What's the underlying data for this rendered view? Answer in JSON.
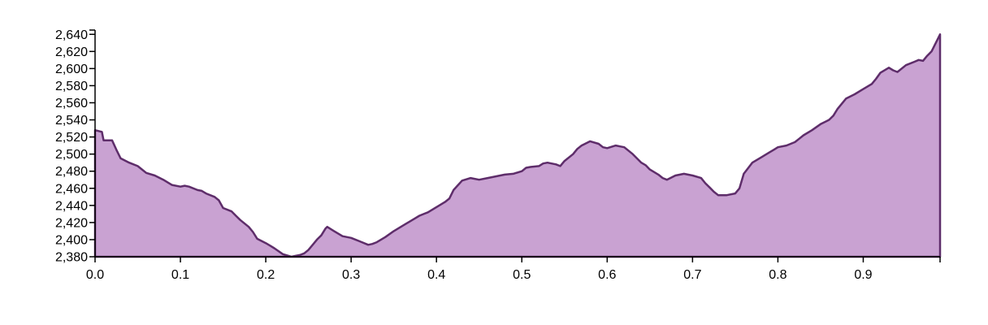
{
  "chart_data": {
    "type": "area",
    "title": "",
    "xlabel": "",
    "ylabel": "",
    "xlim": [
      0,
      0.99
    ],
    "ylim": [
      2380,
      2645
    ],
    "x_ticks": [
      0.0,
      0.1,
      0.2,
      0.3,
      0.4,
      0.5,
      0.6,
      0.7,
      0.8,
      0.9
    ],
    "x_tick_labels": [
      "0.0",
      "0.1",
      "0.2",
      "0.3",
      "0.4",
      "0.5",
      "0.6",
      "0.7",
      "0.8",
      "0.9"
    ],
    "y_ticks": [
      2380,
      2400,
      2420,
      2440,
      2460,
      2480,
      2500,
      2520,
      2540,
      2560,
      2580,
      2600,
      2620,
      2640
    ],
    "y_tick_labels": [
      "2,380",
      "2,400",
      "2,420",
      "2,440",
      "2,460",
      "2,480",
      "2,500",
      "2,520",
      "2,540",
      "2,560",
      "2,580",
      "2,600",
      "2,620",
      "2,640"
    ],
    "fill_color": "#c9a2d2",
    "stroke_color": "#5e2d6a",
    "grid": false,
    "series": [
      {
        "x": [
          0.0,
          0.008,
          0.01,
          0.02,
          0.025,
          0.03,
          0.04,
          0.05,
          0.055,
          0.06,
          0.07,
          0.08,
          0.085,
          0.09,
          0.1,
          0.105,
          0.11,
          0.12,
          0.125,
          0.13,
          0.14,
          0.145,
          0.15,
          0.16,
          0.165,
          0.17,
          0.18,
          0.185,
          0.19,
          0.2,
          0.205,
          0.21,
          0.22,
          0.23,
          0.235,
          0.24,
          0.245,
          0.25,
          0.26,
          0.265,
          0.27,
          0.272,
          0.28,
          0.29,
          0.3,
          0.31,
          0.32,
          0.325,
          0.33,
          0.34,
          0.35,
          0.36,
          0.365,
          0.37,
          0.38,
          0.385,
          0.39,
          0.4,
          0.41,
          0.415,
          0.42,
          0.43,
          0.44,
          0.45,
          0.46,
          0.47,
          0.48,
          0.49,
          0.5,
          0.505,
          0.51,
          0.52,
          0.525,
          0.53,
          0.54,
          0.545,
          0.55,
          0.56,
          0.565,
          0.57,
          0.58,
          0.59,
          0.595,
          0.6,
          0.61,
          0.615,
          0.62,
          0.63,
          0.64,
          0.645,
          0.65,
          0.66,
          0.665,
          0.67,
          0.68,
          0.69,
          0.7,
          0.71,
          0.715,
          0.72,
          0.725,
          0.73,
          0.74,
          0.75,
          0.755,
          0.76,
          0.77,
          0.78,
          0.79,
          0.795,
          0.8,
          0.81,
          0.82,
          0.825,
          0.83,
          0.84,
          0.85,
          0.86,
          0.865,
          0.87,
          0.88,
          0.89,
          0.9,
          0.91,
          0.915,
          0.92,
          0.93,
          0.935,
          0.94,
          0.95,
          0.96,
          0.965,
          0.97,
          0.975,
          0.98,
          0.99
        ],
        "y": [
          2528,
          2526,
          2516,
          2516,
          2505,
          2495,
          2490,
          2486,
          2482,
          2478,
          2475,
          2470,
          2467,
          2464,
          2462,
          2463,
          2462,
          2458,
          2457,
          2454,
          2450,
          2446,
          2437,
          2433,
          2428,
          2423,
          2415,
          2409,
          2401,
          2396,
          2393,
          2390,
          2383,
          2380,
          2381,
          2382,
          2384,
          2388,
          2400,
          2405,
          2413,
          2415,
          2410,
          2404,
          2402,
          2398,
          2394,
          2395,
          2397,
          2403,
          2410,
          2416,
          2419,
          2422,
          2428,
          2430,
          2432,
          2438,
          2444,
          2448,
          2458,
          2469,
          2472,
          2470,
          2472,
          2474,
          2476,
          2477,
          2480,
          2484,
          2485,
          2486,
          2489,
          2490,
          2488,
          2486,
          2492,
          2500,
          2506,
          2510,
          2515,
          2512,
          2508,
          2507,
          2510,
          2509,
          2508,
          2500,
          2490,
          2487,
          2482,
          2476,
          2472,
          2470,
          2475,
          2477,
          2475,
          2472,
          2466,
          2461,
          2456,
          2452,
          2452,
          2454,
          2460,
          2477,
          2490,
          2496,
          2502,
          2505,
          2508,
          2510,
          2514,
          2518,
          2522,
          2528,
          2535,
          2540,
          2545,
          2553,
          2565,
          2570,
          2576,
          2582,
          2588,
          2595,
          2601,
          2598,
          2596,
          2604,
          2608,
          2610,
          2609,
          2615,
          2620,
          2640
        ]
      }
    ]
  }
}
